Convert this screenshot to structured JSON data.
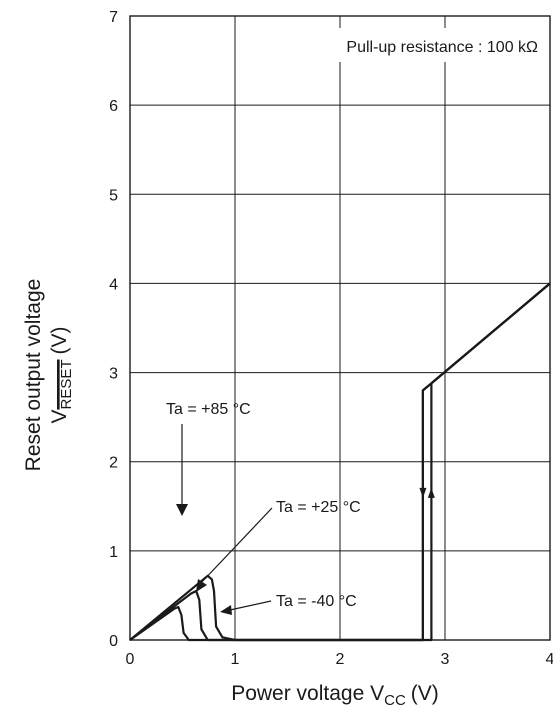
{
  "chart_data": {
    "type": "line",
    "title": "",
    "xlabel": "Power voltage V",
    "xlabel_sub": "CC",
    "xlabel_unit": "(V)",
    "ylabel": "Reset output voltage",
    "ylabel2": "V",
    "ylabel2_sub": "RESET",
    "ylabel2_unit": "(V)",
    "xlim": [
      0,
      4
    ],
    "ylim": [
      0,
      7
    ],
    "x_ticks": [
      0,
      1,
      2,
      3,
      4
    ],
    "x_tick_labels": [
      "0",
      "1",
      "2",
      "3",
      "4"
    ],
    "y_ticks": [
      0,
      1,
      2,
      3,
      4,
      5,
      6,
      7
    ],
    "y_tick_labels": [
      "0",
      "1",
      "2",
      "3",
      "4",
      "5",
      "6",
      "7"
    ],
    "grid": true,
    "condition_label": "Pull-up resistance : 100 kΩ",
    "series": [
      {
        "name": "Ta = +85 °C",
        "values": [
          [
            0,
            0
          ],
          [
            0.42,
            0.35
          ],
          [
            0.46,
            0.37
          ],
          [
            0.49,
            0.28
          ],
          [
            0.51,
            0.08
          ],
          [
            0.56,
            0
          ],
          [
            2.79,
            0
          ],
          [
            2.79,
            2.8
          ],
          [
            2.87,
            2.88
          ],
          [
            4,
            4
          ]
        ]
      },
      {
        "name": "Ta = +25 °C",
        "values": [
          [
            0,
            0
          ],
          [
            0.58,
            0.52
          ],
          [
            0.63,
            0.55
          ],
          [
            0.66,
            0.45
          ],
          [
            0.68,
            0.12
          ],
          [
            0.74,
            0
          ],
          [
            2.79,
            0
          ],
          [
            2.79,
            2.8
          ],
          [
            2.87,
            2.88
          ],
          [
            4,
            4
          ]
        ]
      },
      {
        "name": "Ta = -40 °C",
        "values": [
          [
            0,
            0
          ],
          [
            0.74,
            0.72
          ],
          [
            0.78,
            0.68
          ],
          [
            0.8,
            0.55
          ],
          [
            0.82,
            0.15
          ],
          [
            0.88,
            0.03
          ],
          [
            1.0,
            0
          ],
          [
            2.87,
            0
          ],
          [
            2.87,
            2.88
          ],
          [
            4,
            4
          ]
        ]
      }
    ],
    "annotations": [
      {
        "text": "Ta = +85 °C",
        "series": 0
      },
      {
        "text": "Ta = +25 °C",
        "series": 1
      },
      {
        "text": "Ta = -40 °C",
        "series": 2
      }
    ],
    "hysteresis_arrows": [
      {
        "x": 2.79,
        "direction": "down"
      },
      {
        "x": 2.87,
        "direction": "up"
      }
    ]
  }
}
